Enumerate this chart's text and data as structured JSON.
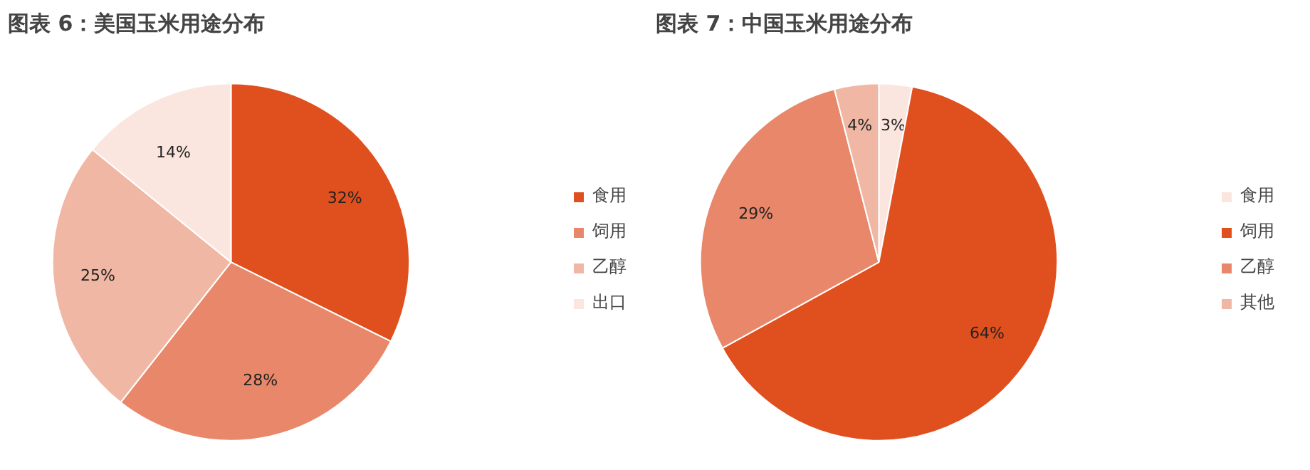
{
  "chart_data": [
    {
      "type": "pie",
      "title": "图表 6：美国玉米用途分布",
      "categories": [
        "食用",
        "饲用",
        "乙醇",
        "出口"
      ],
      "values": [
        32,
        28,
        25,
        14
      ],
      "value_labels": [
        "32%",
        "28%",
        "25%",
        "14%"
      ],
      "colors": [
        "#e0501e",
        "#e8876a",
        "#f0b8a4",
        "#fbe6df"
      ],
      "legend": "right"
    },
    {
      "type": "pie",
      "title": "图表 7：中国玉米用途分布",
      "categories": [
        "食用",
        "饲用",
        "乙醇",
        "其他"
      ],
      "values": [
        3,
        64,
        29,
        4
      ],
      "value_labels": [
        "3%",
        "64%",
        "29%",
        "4%"
      ],
      "colors": [
        "#fbe6df",
        "#e0501e",
        "#e8876a",
        "#f0b8a4"
      ],
      "legend": "right"
    }
  ]
}
